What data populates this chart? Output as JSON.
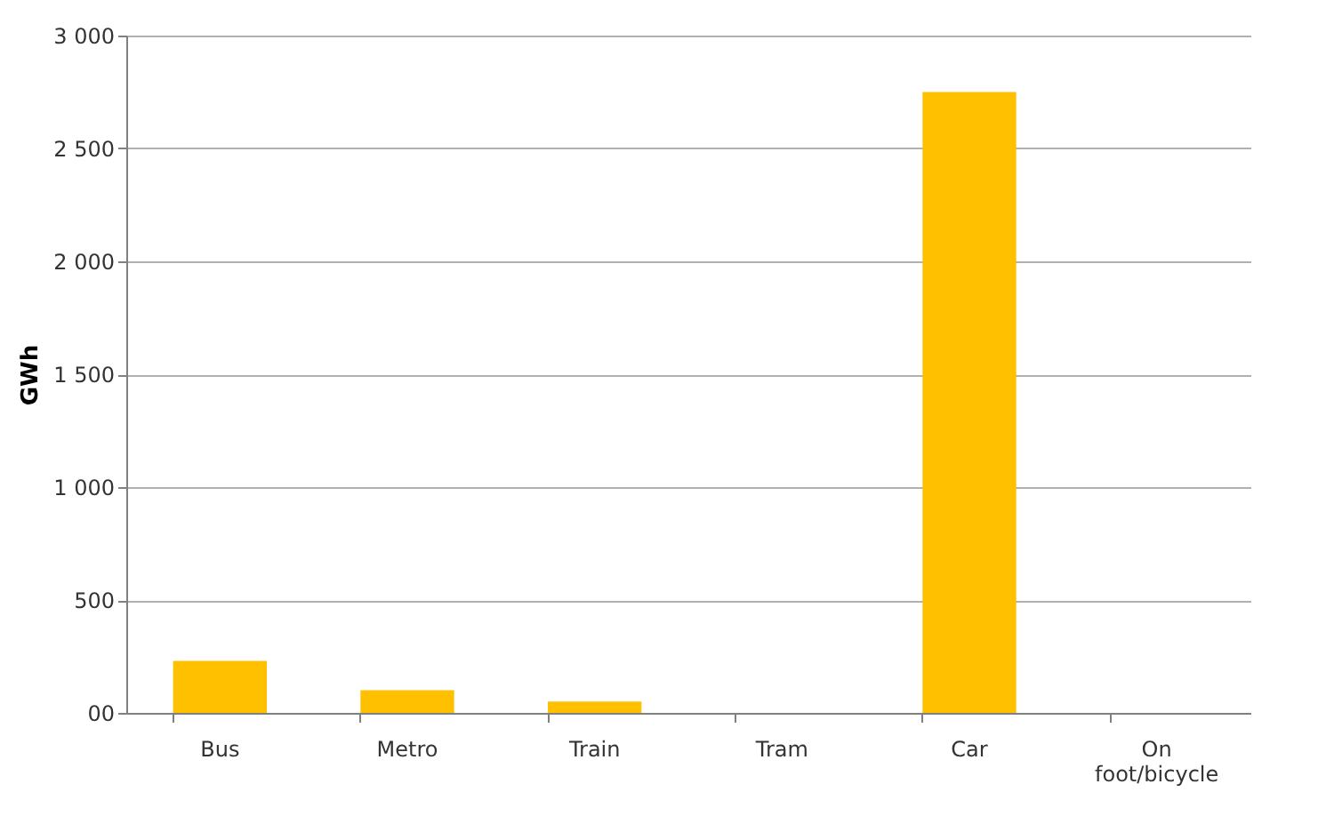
{
  "chart_data": {
    "type": "bar",
    "ylabel": "GWh",
    "categories": [
      "Bus",
      "Metro",
      "Train",
      "Tram",
      "Car",
      "On foot/bicycle"
    ],
    "values": [
      230,
      100,
      50,
      0,
      2750,
      0
    ],
    "color": "#ffc000",
    "ylim": [
      0,
      3000
    ],
    "yticks": [
      {
        "value": 0,
        "label": "00"
      },
      500,
      {
        "value": 1000,
        "label": "1 000"
      },
      {
        "value": 1500,
        "label": "1 500"
      },
      {
        "value": 2000,
        "label": "2 000"
      },
      {
        "value": 2500,
        "label": "2 500"
      },
      {
        "value": 3000,
        "label": "3 000"
      }
    ],
    "grid": "y"
  }
}
